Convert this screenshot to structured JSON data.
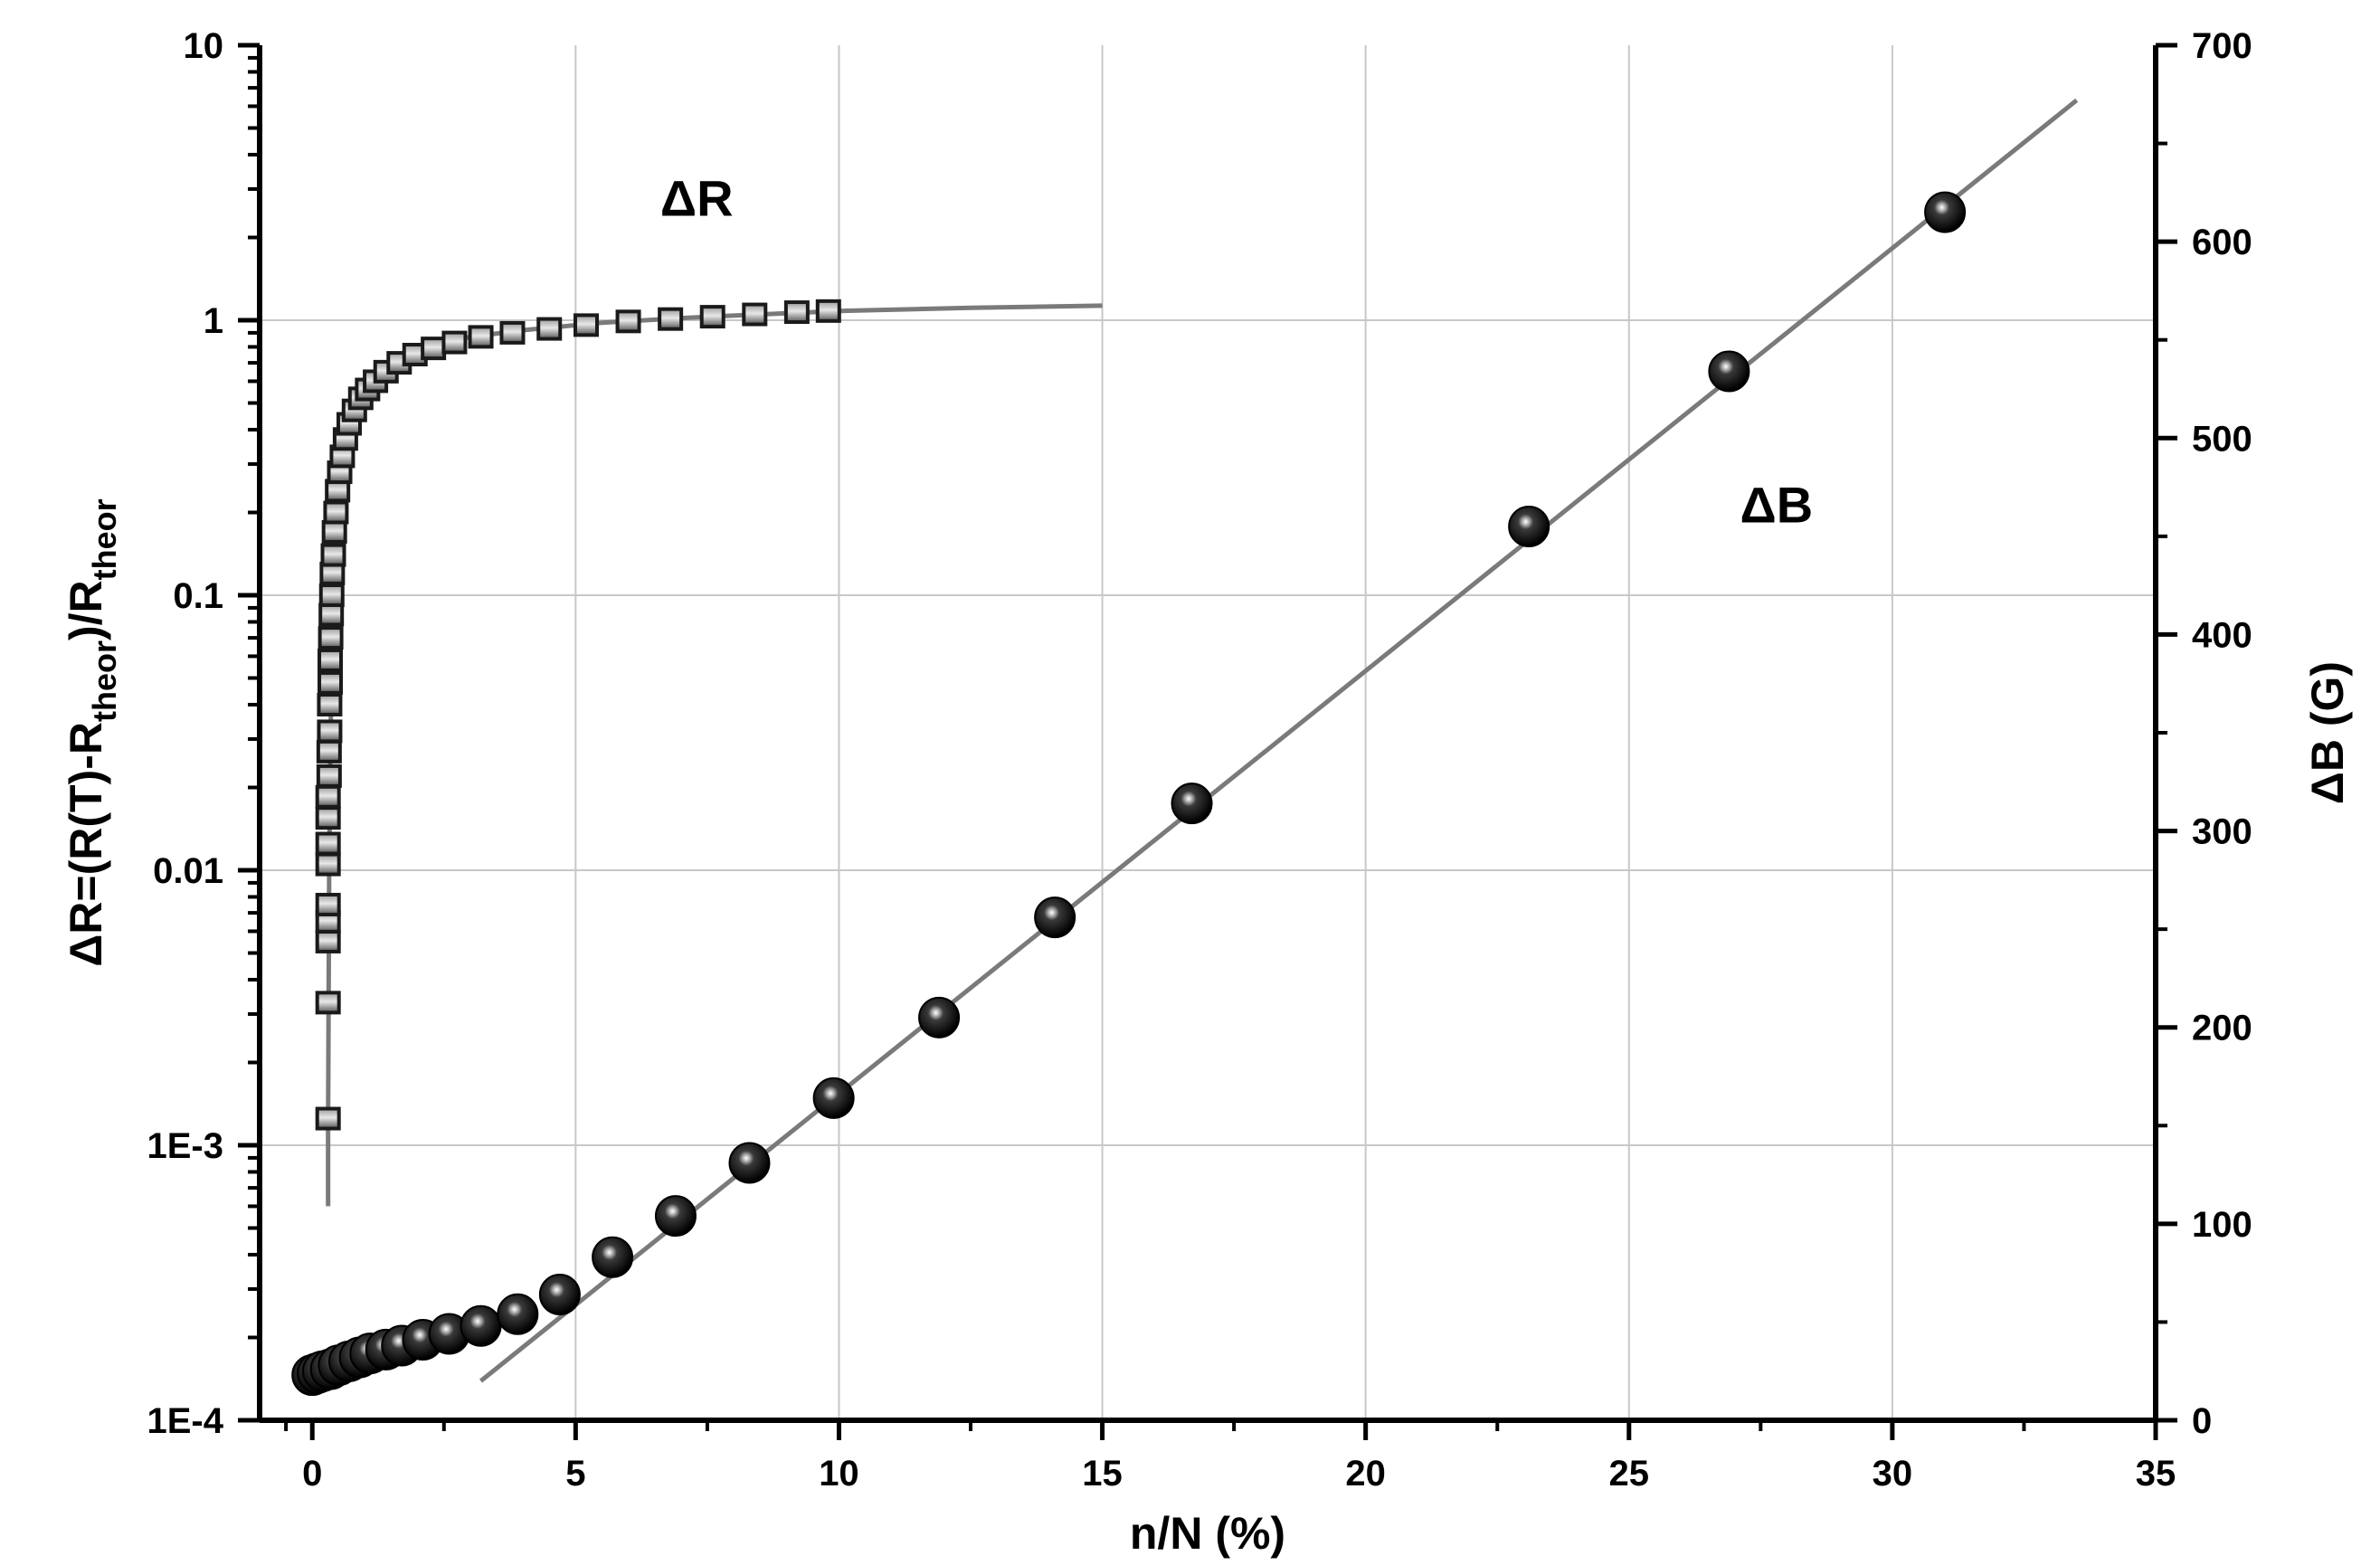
{
  "chart_data": {
    "type": "scatter",
    "title": "",
    "xlabel": "n/N (%)",
    "ylabel_left": {
      "main": "ΔR=(R(T)-R",
      "sub1": "theor",
      "mid": ")/R",
      "sub2": "theor"
    },
    "ylabel_right": "ΔB (G)",
    "x_axis": {
      "range": [
        -1,
        35
      ],
      "ticks": [
        0,
        5,
        10,
        15,
        20,
        25,
        30,
        35
      ],
      "tick_labels": [
        "0",
        "5",
        "10",
        "15",
        "20",
        "25",
        "30",
        "35"
      ]
    },
    "y_left_axis": {
      "scale": "log",
      "range": [
        0.0001,
        10
      ],
      "ticks": [
        0.0001,
        0.001,
        0.01,
        0.1,
        1,
        10
      ],
      "tick_labels": [
        "1E-4",
        "1E-3",
        "0.01",
        "0.1",
        "1",
        "10"
      ]
    },
    "y_right_axis": {
      "scale": "linear",
      "range": [
        0,
        700
      ],
      "ticks": [
        0,
        100,
        200,
        300,
        400,
        500,
        600,
        700
      ],
      "tick_labels": [
        "0",
        "100",
        "200",
        "300",
        "400",
        "500",
        "600",
        "700"
      ]
    },
    "grid": true,
    "annotations": [
      {
        "text": "ΔR",
        "x": 7.3,
        "y_log": 2.4
      },
      {
        "text": "ΔB",
        "x": 27.8,
        "y_right": 457
      }
    ],
    "series": [
      {
        "name": "ΔR",
        "axis": "left",
        "marker": "square",
        "color": "#1a1a1a",
        "x": [
          0.3,
          0.3,
          0.3,
          0.3,
          0.3,
          0.3,
          0.3,
          0.3,
          0.3,
          0.32,
          0.32,
          0.33,
          0.33,
          0.34,
          0.34,
          0.35,
          0.36,
          0.37,
          0.38,
          0.4,
          0.42,
          0.45,
          0.48,
          0.52,
          0.57,
          0.63,
          0.7,
          0.8,
          0.92,
          1.05,
          1.2,
          1.4,
          1.65,
          1.95,
          2.3,
          2.7,
          3.2,
          3.8,
          4.5,
          5.2,
          6.0,
          6.8,
          7.6,
          8.4,
          9.2,
          9.8
        ],
        "y": [
          0.00125,
          0.0033,
          0.0055,
          0.0065,
          0.0075,
          0.0105,
          0.0125,
          0.0155,
          0.0185,
          0.022,
          0.027,
          0.032,
          0.04,
          0.048,
          0.058,
          0.07,
          0.085,
          0.1,
          0.12,
          0.14,
          0.17,
          0.2,
          0.24,
          0.28,
          0.32,
          0.37,
          0.42,
          0.47,
          0.52,
          0.56,
          0.6,
          0.65,
          0.7,
          0.75,
          0.79,
          0.83,
          0.87,
          0.9,
          0.93,
          0.96,
          0.99,
          1.01,
          1.03,
          1.05,
          1.07,
          1.08
        ]
      },
      {
        "name": "ΔR fit",
        "axis": "left",
        "type": "line",
        "color": "#7a7a7a",
        "x": [
          0.3,
          0.3,
          0.31,
          0.32,
          0.34,
          0.37,
          0.4,
          0.45,
          0.52,
          0.6,
          0.7,
          0.85,
          1.0,
          1.3,
          1.7,
          2.2,
          3.0,
          4.0,
          5.5,
          7.5,
          10.0,
          12.5,
          15.0
        ],
        "y": [
          0.0006,
          0.0012,
          0.0035,
          0.01,
          0.025,
          0.06,
          0.1,
          0.16,
          0.24,
          0.33,
          0.42,
          0.5,
          0.56,
          0.65,
          0.73,
          0.8,
          0.87,
          0.92,
          0.98,
          1.03,
          1.08,
          1.11,
          1.13
        ]
      },
      {
        "name": "ΔB",
        "axis": "right",
        "marker": "sphere",
        "color": "#000000",
        "x": [
          0.0,
          0.1,
          0.2,
          0.35,
          0.5,
          0.7,
          0.9,
          1.1,
          1.4,
          1.7,
          2.1,
          2.6,
          3.2,
          3.9,
          4.7,
          5.7,
          6.9,
          8.3,
          9.9,
          11.9,
          14.1,
          16.7,
          23.1,
          26.9,
          31.0
        ],
        "y": [
          23,
          24,
          25,
          26,
          28,
          30,
          32,
          34,
          36,
          38,
          41,
          44,
          48,
          54,
          64,
          83,
          104,
          131,
          164,
          205,
          256,
          314,
          455,
          534,
          615
        ]
      },
      {
        "name": "ΔB fit",
        "axis": "right",
        "type": "line",
        "color": "#7a7a7a",
        "x": [
          3.2,
          33.5
        ],
        "y": [
          20,
          672
        ]
      }
    ]
  }
}
